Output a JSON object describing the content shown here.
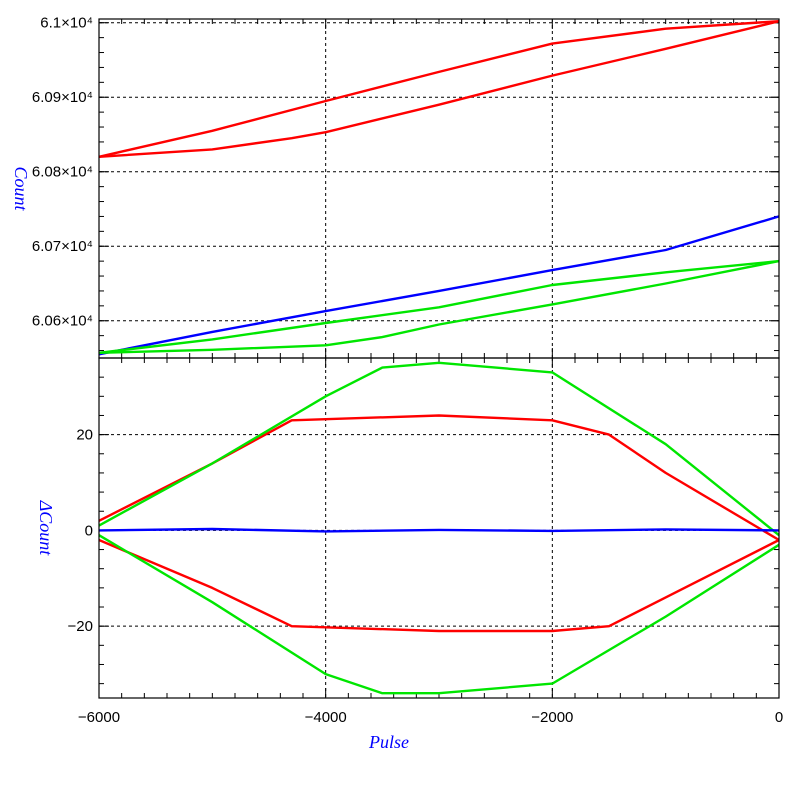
{
  "chart_data": [
    {
      "type": "line",
      "panel": "top",
      "ylabel": "Count",
      "xlim": [
        -6000,
        0
      ],
      "ylim": [
        60550,
        61005
      ],
      "grid": true,
      "ytick_labels": [
        "6.06×10⁴",
        "6.07×10⁴",
        "6.08×10⁴",
        "6.09×10⁴",
        "6.1×10⁴"
      ],
      "yticks": [
        60600,
        60700,
        60800,
        60900,
        61000
      ],
      "series": [
        {
          "color": "#ff0000",
          "x": [
            -6000,
            -5000,
            -4000,
            -3000,
            -2000,
            -1000,
            0
          ],
          "y": [
            60820,
            60855,
            60895,
            60934,
            60972,
            60992,
            61002
          ]
        },
        {
          "color": "#ff0000",
          "x": [
            -6000,
            -5000,
            -4300,
            -4000,
            -3000,
            -2000,
            -1000,
            0
          ],
          "y": [
            60820,
            60830,
            60845,
            60853,
            60890,
            60929,
            60965,
            61002
          ]
        },
        {
          "color": "#0000ff",
          "x": [
            -6000,
            -5000,
            -4000,
            -3000,
            -2000,
            -1000,
            0
          ],
          "y": [
            60555,
            60585,
            60613,
            60640,
            60668,
            60695,
            60740
          ]
        },
        {
          "color": "#00e600",
          "x": [
            -6000,
            -5000,
            -4000,
            -3000,
            -2000,
            -1000,
            0
          ],
          "y": [
            60557,
            60575,
            60597,
            60618,
            60648,
            60665,
            60680
          ]
        },
        {
          "color": "#00e600",
          "x": [
            -6000,
            -5000,
            -4000,
            -3500,
            -3000,
            -2000,
            -1000,
            0
          ],
          "y": [
            60557,
            60561,
            60567,
            60578,
            60595,
            60622,
            60650,
            60680
          ]
        }
      ]
    },
    {
      "type": "line",
      "panel": "bottom",
      "ylabel": "ΔCount",
      "xlabel": "Pulse",
      "xlim": [
        -6000,
        0
      ],
      "ylim": [
        -35,
        36
      ],
      "grid": true,
      "yticks": [
        -20,
        0,
        20
      ],
      "ytick_labels": [
        "−20",
        "0",
        "20"
      ],
      "xticks": [
        -6000,
        -4000,
        -2000,
        0
      ],
      "xtick_labels": [
        "−6000",
        "−4000",
        "−2000",
        "0"
      ],
      "series": [
        {
          "color": "#ff0000",
          "x": [
            -6000,
            -5000,
            -4300,
            -3000,
            -2000,
            -1500,
            -1000,
            0
          ],
          "y": [
            2,
            14,
            23,
            24,
            23,
            20,
            12,
            -2
          ]
        },
        {
          "color": "#ff0000",
          "x": [
            -6000,
            -5000,
            -4300,
            -3000,
            -2000,
            -1500,
            -1000,
            0
          ],
          "y": [
            -2,
            -12,
            -20,
            -21,
            -21,
            -20,
            -14,
            -2
          ]
        },
        {
          "color": "#00e600",
          "x": [
            -6000,
            -5000,
            -4000,
            -3500,
            -3000,
            -2000,
            -1000,
            0
          ],
          "y": [
            1,
            14,
            28,
            34,
            35,
            33,
            18,
            -1
          ]
        },
        {
          "color": "#00e600",
          "x": [
            -6000,
            -5000,
            -4000,
            -3500,
            -3000,
            -2000,
            -1000,
            0
          ],
          "y": [
            -1,
            -15,
            -30,
            -34,
            -34,
            -32,
            -18,
            -3
          ]
        },
        {
          "color": "#0000ff",
          "x": [
            -6000,
            -5000,
            -4000,
            -3000,
            -2000,
            -1000,
            0
          ],
          "y": [
            0,
            0.3,
            -0.2,
            0.1,
            -0.1,
            0.2,
            0
          ]
        }
      ]
    }
  ]
}
